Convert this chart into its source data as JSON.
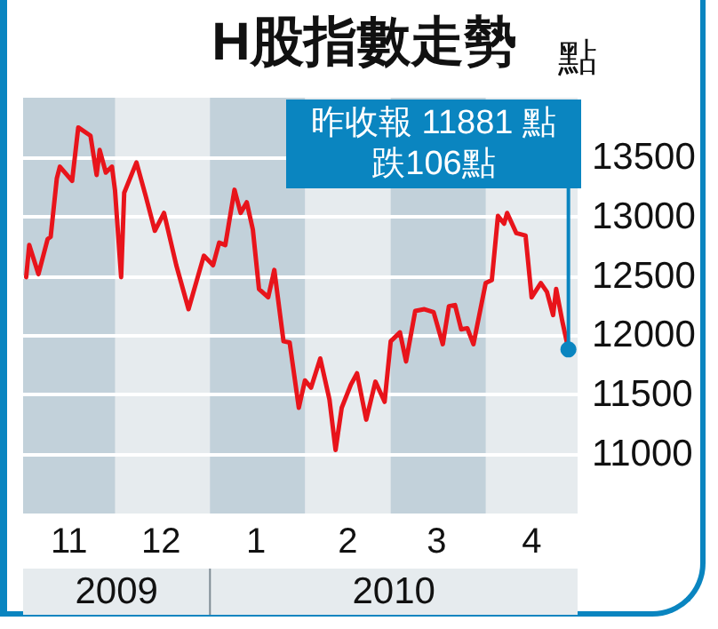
{
  "chart_data": {
    "type": "line",
    "title": "H股指數走勢",
    "ylabel": "點",
    "x": [
      "2009-11-02",
      "2009-11-03",
      "2009-11-06",
      "2009-11-09",
      "2009-11-10",
      "2009-11-12",
      "2009-11-13",
      "2009-11-17",
      "2009-11-19",
      "2009-11-23",
      "2009-11-25",
      "2009-11-26",
      "2009-11-28",
      "2009-11-30",
      "2009-12-01",
      "2009-12-03",
      "2009-12-04",
      "2009-12-08",
      "2009-12-11",
      "2009-12-14",
      "2009-12-17",
      "2009-12-21",
      "2009-12-25",
      "2009-12-30",
      "2010-01-02",
      "2010-01-04",
      "2010-01-06",
      "2010-01-09",
      "2010-01-11",
      "2010-01-13",
      "2010-01-15",
      "2010-01-17",
      "2010-01-20",
      "2010-01-22",
      "2010-01-25",
      "2010-01-27",
      "2010-01-30",
      "2010-02-01",
      "2010-02-03",
      "2010-02-06",
      "2010-02-09",
      "2010-02-11",
      "2010-02-13",
      "2010-02-16",
      "2010-02-18",
      "2010-02-21",
      "2010-02-24",
      "2010-02-27",
      "2010-03-01",
      "2010-03-04",
      "2010-03-06",
      "2010-03-09",
      "2010-03-12",
      "2010-03-15",
      "2010-03-18",
      "2010-03-20",
      "2010-03-22",
      "2010-03-24",
      "2010-03-26",
      "2010-03-28",
      "2010-04-01",
      "2010-04-03",
      "2010-04-05",
      "2010-04-07",
      "2010-04-08",
      "2010-04-11",
      "2010-04-14",
      "2010-04-16",
      "2010-04-19",
      "2010-04-21",
      "2010-04-23",
      "2010-04-24",
      "2010-04-26",
      "2010-04-28"
    ],
    "series": [
      {
        "color": "#e8141b",
        "values": [
          12490,
          12760,
          12515,
          12810,
          12830,
          13320,
          13420,
          13300,
          13750,
          13680,
          13350,
          13560,
          13370,
          13420,
          13220,
          12490,
          13200,
          13455,
          13175,
          12880,
          13030,
          12590,
          12220,
          12670,
          12590,
          12780,
          12760,
          13225,
          13030,
          13120,
          12890,
          12390,
          12320,
          12550,
          11950,
          11940,
          11390,
          11620,
          11560,
          11805,
          11460,
          11035,
          11390,
          11585,
          11680,
          11290,
          11610,
          11440,
          11950,
          12025,
          11780,
          12205,
          12220,
          12195,
          11925,
          12245,
          12255,
          12050,
          12060,
          11925,
          12440,
          12465,
          13005,
          12940,
          13030,
          12860,
          12840,
          12320,
          12440,
          12365,
          12170,
          12390,
          12120,
          11881
        ]
      }
    ],
    "xlim": [
      "2009-11-01",
      "2010-05-01"
    ],
    "xticks": [
      {
        "value": "2009-11-16",
        "label": "11"
      },
      {
        "value": "2009-12-16",
        "label": "12"
      },
      {
        "value": "2010-01-16",
        "label": "1"
      },
      {
        "value": "2010-02-15",
        "label": "2"
      },
      {
        "value": "2010-03-16",
        "label": "3"
      },
      {
        "value": "2010-04-16",
        "label": "4"
      }
    ],
    "ylim": [
      10500,
      14000
    ],
    "yticks": [
      11000,
      11500,
      12000,
      12500,
      13000,
      13500
    ],
    "grid": "y",
    "marker": "none",
    "line_style": "solid",
    "bands": [
      {
        "axis": "x",
        "from": "2009-11-01",
        "to": "2009-12-01",
        "color": "#c2d1da"
      },
      {
        "axis": "x",
        "from": "2010-01-01",
        "to": "2010-02-01",
        "color": "#c2d1da"
      },
      {
        "axis": "x",
        "from": "2010-03-01",
        "to": "2010-04-01",
        "color": "#c2d1da"
      }
    ],
    "annotations": [
      {
        "text": "昨收報 11881 點跌106點",
        "x": "2010-04-28",
        "y": 11881
      },
      "2009",
      "2010"
    ]
  }
}
